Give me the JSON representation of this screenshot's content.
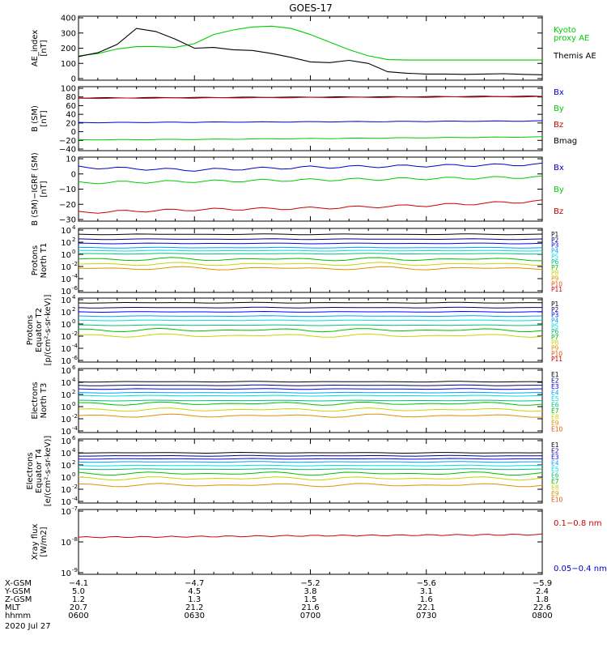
{
  "title": "GOES-17",
  "date": "2020 Jul 27",
  "colors": {
    "black": "#000000",
    "blue": "#0000cc",
    "green": "#00cc00",
    "red": "#cc0000",
    "p_series": [
      "#000000",
      "#000080",
      "#0000ff",
      "#00a0ff",
      "#00e0e0",
      "#00c080",
      "#00c000",
      "#c8d400",
      "#e09000",
      "#e05000",
      "#cc0000"
    ]
  },
  "panels": [
    {
      "id": "ae",
      "ylabel": [
        "AE_index",
        "[nT]"
      ],
      "yticks": [
        "400",
        "300",
        "200",
        "100",
        "0"
      ],
      "legend": [
        {
          "text": "Kyoto",
          "color": "#00cc00"
        },
        {
          "text": "proxy AE",
          "color": "#00cc00"
        },
        {
          "text": "Themis AE",
          "color": "#000000"
        }
      ]
    },
    {
      "id": "bsm",
      "ylabel": [
        "B (SM)",
        "[nT]"
      ],
      "yticks": [
        "100",
        "80",
        "60",
        "40",
        "20",
        "0",
        "−20",
        "−40"
      ],
      "legend": [
        {
          "text": "Bx",
          "color": "#0000cc"
        },
        {
          "text": "By",
          "color": "#00cc00"
        },
        {
          "text": "Bz",
          "color": "#cc0000"
        },
        {
          "text": "Bmag",
          "color": "#000000"
        }
      ]
    },
    {
      "id": "bigrf",
      "ylabel": [
        "B (SM)−IGRF (SM)",
        "[nT]"
      ],
      "yticks": [
        "10",
        "0",
        "−10",
        "−20",
        "−30"
      ],
      "legend": [
        {
          "text": "Bx",
          "color": "#0000cc"
        },
        {
          "text": "By",
          "color": "#00cc00"
        },
        {
          "text": "Bz",
          "color": "#cc0000"
        }
      ]
    },
    {
      "id": "pn",
      "ylabel": [
        "Protons",
        "North T1"
      ],
      "ytick_exps": [
        "4",
        "2",
        "0",
        "-2",
        "-4",
        "-6"
      ],
      "legend_items": [
        "P1",
        "P2",
        "P3",
        "P4",
        "P5",
        "P6",
        "P7",
        "P8",
        "P9",
        "P10",
        "P11"
      ]
    },
    {
      "id": "pe",
      "ylabel": [
        "Protons",
        "Equator T2",
        "[p/(cm²-s-sr-keV)]"
      ],
      "ytick_exps": [
        "4",
        "2",
        "0",
        "-2",
        "-4",
        "-6"
      ],
      "legend_items": [
        "P1",
        "P2",
        "P3",
        "P4",
        "P5",
        "P6",
        "P7",
        "P8",
        "P9",
        "P10",
        "P11"
      ]
    },
    {
      "id": "en",
      "ylabel": [
        "Electrons",
        "North T3"
      ],
      "ytick_exps": [
        "6",
        "4",
        "2",
        "0",
        "-2",
        "-4"
      ],
      "legend_items": [
        "E1",
        "E2",
        "E3",
        "E4",
        "E5",
        "E6",
        "E7",
        "E8",
        "E9",
        "E10"
      ]
    },
    {
      "id": "ee",
      "ylabel": [
        "Electrons",
        "Equator T4",
        "[e/(cm²-s-sr-keV)]"
      ],
      "ytick_exps": [
        "6",
        "4",
        "2",
        "0",
        "-2",
        "-4"
      ],
      "legend_items": [
        "E1",
        "E2",
        "E3",
        "E4",
        "E5",
        "E6",
        "E7",
        "E8",
        "E9",
        "E10"
      ]
    },
    {
      "id": "xray",
      "ylabel": [
        "Xray flux",
        "[W/m2]"
      ],
      "ytick_exps": [
        "-7",
        "-8",
        "-9"
      ],
      "legend": [
        {
          "text": "0.1−0.8 nm",
          "color": "#cc0000"
        },
        {
          "text": "0.05−0.4 nm",
          "color": "#0000cc"
        }
      ]
    }
  ],
  "orbit": {
    "labels": [
      "X-GSM",
      "Y-GSM",
      "Z-GSM",
      "MLT",
      "hhmm"
    ],
    "columns": [
      {
        "values": [
          "−4.1",
          "5.0",
          "1.2",
          "20.7",
          "0600"
        ]
      },
      {
        "values": [
          "−4.7",
          "4.5",
          "1.3",
          "21.2",
          "0630"
        ]
      },
      {
        "values": [
          "−5.2",
          "3.8",
          "1.5",
          "21.6",
          "0700"
        ]
      },
      {
        "values": [
          "−5.6",
          "3.1",
          "1.6",
          "22.1",
          "0730"
        ]
      },
      {
        "values": [
          "−5.9",
          "2.4",
          "1.8",
          "22.6",
          "0800"
        ]
      }
    ]
  },
  "chart_data": [
    {
      "type": "line",
      "title": "GOES-17",
      "panel": "AE index",
      "ylabel": "AE_index [nT]",
      "ylim": [
        0,
        400
      ],
      "x": [
        0,
        5,
        10,
        15,
        20,
        25,
        30,
        35,
        40,
        45,
        50,
        55,
        60,
        65,
        70,
        75,
        80,
        85,
        90,
        95,
        100,
        105,
        110,
        115,
        120
      ],
      "x_unit": "minutes after 0600 UT",
      "series": [
        {
          "name": "Kyoto proxy AE",
          "values": [
            150,
            165,
            195,
            210,
            210,
            205,
            230,
            290,
            320,
            340,
            345,
            330,
            290,
            240,
            190,
            150,
            125,
            122,
            122,
            122,
            122,
            122,
            122,
            122,
            122
          ]
        },
        {
          "name": "Themis AE",
          "values": [
            145,
            170,
            225,
            330,
            310,
            260,
            200,
            205,
            190,
            185,
            165,
            140,
            110,
            105,
            120,
            100,
            45,
            35,
            30,
            30,
            28,
            30,
            32,
            28,
            25
          ]
        }
      ]
    },
    {
      "type": "line",
      "panel": "B (SM)",
      "ylabel": "B (SM) [nT]",
      "ylim": [
        -45,
        100
      ],
      "x": [
        0,
        30,
        60,
        90,
        120
      ],
      "series": [
        {
          "name": "Bmag",
          "values": [
            77,
            78,
            79,
            80,
            81
          ]
        },
        {
          "name": "Bz",
          "values": [
            76,
            77,
            78,
            79,
            80
          ]
        },
        {
          "name": "Bx",
          "values": [
            18,
            19,
            20,
            21,
            22
          ]
        },
        {
          "name": "By",
          "values": [
            -23,
            -22,
            -20,
            -18,
            -16
          ]
        }
      ]
    },
    {
      "type": "line",
      "panel": "B (SM) - IGRF (SM)",
      "ylabel": "B (SM)-IGRF (SM) [nT]",
      "ylim": [
        -32,
        11
      ],
      "x": [
        0,
        30,
        60,
        90,
        120
      ],
      "series": [
        {
          "name": "Bx",
          "values": [
            5,
            3,
            5,
            6,
            7
          ]
        },
        {
          "name": "By",
          "values": [
            -6,
            -5,
            -4,
            -3,
            -2
          ]
        },
        {
          "name": "Bz",
          "values": [
            -27,
            -25,
            -24,
            -22,
            -19
          ]
        }
      ]
    },
    {
      "type": "line",
      "panel": "Protons North T1",
      "yscale": "log",
      "ylim": [
        1e-06,
        10000.0
      ],
      "series_log10": [
        {
          "name": "P1",
          "value": 3.3
        },
        {
          "name": "P2",
          "value": 2.5
        },
        {
          "name": "P3",
          "value": 1.8
        },
        {
          "name": "P4",
          "value": 1.1
        },
        {
          "name": "P5",
          "value": 0.6
        },
        {
          "name": "P6",
          "value": 0.1
        },
        {
          "name": "P7",
          "value": -0.8
        },
        {
          "name": "P8",
          "value": -1.6
        },
        {
          "name": "P9",
          "value": -2.3
        }
      ]
    },
    {
      "type": "line",
      "panel": "Protons Equator T2",
      "yscale": "log",
      "ylim": [
        1e-06,
        10000.0
      ],
      "ylabel": "p/(cm2-s-sr-keV)",
      "series_log10": [
        {
          "name": "P1",
          "value": 3.5
        },
        {
          "name": "P2",
          "value": 2.7
        },
        {
          "name": "P3",
          "value": 2.0
        },
        {
          "name": "P4",
          "value": 1.3
        },
        {
          "name": "P5",
          "value": 0.6
        },
        {
          "name": "P6",
          "value": -0.2
        },
        {
          "name": "P7",
          "value": -1.0
        },
        {
          "name": "P8",
          "value": -1.9
        }
      ]
    },
    {
      "type": "line",
      "panel": "Electrons North T3",
      "yscale": "log",
      "ylim": [
        0.0001,
        1000000.0
      ],
      "series_log10": [
        {
          "name": "E1",
          "value": 4.1
        },
        {
          "name": "E2",
          "value": 3.5
        },
        {
          "name": "E3",
          "value": 2.9
        },
        {
          "name": "E4",
          "value": 2.3
        },
        {
          "name": "E5",
          "value": 1.8
        },
        {
          "name": "E6",
          "value": 1.0
        },
        {
          "name": "E7",
          "value": 0.5
        },
        {
          "name": "E8",
          "value": -0.5
        },
        {
          "name": "E9",
          "value": -1.5
        }
      ]
    },
    {
      "type": "line",
      "panel": "Electrons Equator T4",
      "yscale": "log",
      "ylim": [
        0.0001,
        1000000.0
      ],
      "ylabel": "e/(cm2-s-sr-keV)",
      "series_log10": [
        {
          "name": "E1",
          "value": 4.0
        },
        {
          "name": "E2",
          "value": 3.5
        },
        {
          "name": "E3",
          "value": 3.0
        },
        {
          "name": "E4",
          "value": 2.5
        },
        {
          "name": "E5",
          "value": 1.9
        },
        {
          "name": "E6",
          "value": 1.3
        },
        {
          "name": "E7",
          "value": 0.6
        },
        {
          "name": "E8",
          "value": -0.2
        },
        {
          "name": "E9",
          "value": -1.3
        }
      ]
    },
    {
      "type": "line",
      "panel": "Xray flux",
      "yscale": "log",
      "ylim": [
        1e-09,
        1e-07
      ],
      "ylabel": "Xray flux [W/m2]",
      "series_log10": [
        {
          "name": "0.1-0.8 nm",
          "values": [
            -7.85,
            -7.83,
            -7.8,
            -7.78,
            -7.76
          ]
        }
      ]
    }
  ]
}
